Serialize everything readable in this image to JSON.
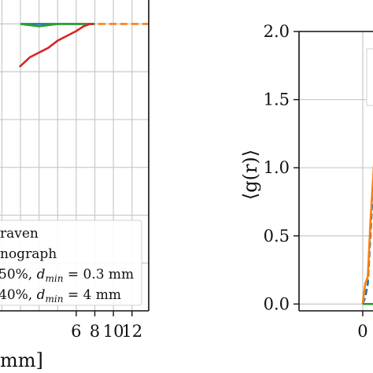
{
  "chart_data": [
    {
      "type": "line",
      "xlabel": "mm]",
      "xlim": [
        -2.2,
        13.8
      ],
      "ylim": [
        -0.2,
        1.1
      ],
      "xticks": [
        {
          "v": 6,
          "label": "6"
        },
        {
          "v": 8,
          "label": "8"
        },
        {
          "v": 10,
          "label": "10"
        },
        {
          "v": 12,
          "label": "12"
        }
      ],
      "grid": true,
      "legend_position": "lower-right",
      "legend": [
        "raven",
        "nograph",
        "50%, d_min = 0.3 mm",
        "40%, d_min = 4 mm"
      ],
      "series": [
        {
          "name": "raven",
          "color": "#1f77b4",
          "dash": "solid",
          "x": [
            0,
            2,
            4,
            6,
            7,
            8
          ],
          "y": [
            1.0,
            1.0,
            1.0,
            1.0,
            1.0,
            1.0
          ]
        },
        {
          "name": "nograph",
          "color": "#ff7f0e",
          "dash": "dashed",
          "x": [
            6,
            8,
            10,
            12,
            14
          ],
          "y": [
            1.0,
            1.0,
            1.0,
            1.0,
            1.0
          ]
        },
        {
          "name": "50%, d_min = 0.3 mm",
          "color": "#2ca02c",
          "dash": "solid",
          "x": [
            0,
            2,
            4,
            5,
            6,
            7,
            8
          ],
          "y": [
            1.0,
            0.99,
            1.0,
            1.0,
            1.0,
            1.0,
            1.0
          ]
        },
        {
          "name": "40%, d_min = 4 mm",
          "color": "#d62728",
          "dash": "solid",
          "x": [
            -0.1,
            1.0,
            2.0,
            3.0,
            4.0,
            5.0,
            6.0,
            6.8,
            7.5,
            7.9
          ],
          "y": [
            0.82,
            0.86,
            0.88,
            0.9,
            0.93,
            0.95,
            0.97,
            0.99,
            1.0,
            1.0
          ]
        }
      ]
    },
    {
      "type": "line",
      "ylabel": "⟨g(r)⟩",
      "xlim": [
        -0.1,
        0.26
      ],
      "ylim": [
        -0.05,
        2.0
      ],
      "xticks": [
        {
          "v": 0,
          "label": "0"
        }
      ],
      "yticks": [
        {
          "v": 0.0,
          "label": "0.0"
        },
        {
          "v": 0.5,
          "label": "0.5"
        },
        {
          "v": 1.0,
          "label": "1.0"
        },
        {
          "v": 1.5,
          "label": "1.5"
        },
        {
          "v": 2.0,
          "label": "2.0"
        }
      ],
      "grid": true,
      "series": [
        {
          "name": "raven",
          "color": "#1f77b4",
          "dash": "dashed",
          "x": [
            0,
            0.004,
            0.008,
            0.012,
            0.016,
            0.018,
            0.02,
            0.024,
            0.028,
            0.032,
            0.036,
            0.04,
            0.044,
            0.048,
            0.052,
            0.056,
            0.06,
            0.064,
            0.068,
            0.072
          ],
          "y": [
            0,
            0.05,
            0.15,
            0.5,
            0.85,
            1.0,
            1.15,
            1.3,
            1.25,
            1.2,
            1.1,
            1.15,
            1.05,
            1.1,
            1.02,
            1.0,
            1.06,
            0.98,
            1.0,
            0.98
          ]
        },
        {
          "name": "nograph",
          "color": "#ff7f0e",
          "dash": "solid",
          "x": [
            0,
            0.004,
            0.008,
            0.012,
            0.016,
            0.02,
            0.024,
            0.026,
            0.028,
            0.03,
            0.032,
            0.034,
            0.036,
            0.04,
            0.044,
            0.048,
            0.052,
            0.056,
            0.06,
            0.064,
            0.068,
            0.072
          ],
          "y": [
            0,
            0.15,
            0.2,
            0.6,
            0.9,
            1.2,
            1.35,
            1.45,
            1.3,
            1.55,
            1.25,
            1.3,
            1.1,
            1.25,
            1.05,
            1.3,
            1.05,
            1.1,
            0.95,
            1.05,
            1.0,
            0.98
          ]
        },
        {
          "name": "50%, d_min = 0.3 mm",
          "color": "#2ca02c",
          "dash": "solid",
          "x": [
            0,
            0.02,
            0.04,
            0.05,
            0.056,
            0.062,
            0.066,
            0.072
          ],
          "y": [
            0,
            0,
            0,
            0,
            0.05,
            0.1,
            0.12,
            0.14
          ]
        }
      ]
    }
  ]
}
